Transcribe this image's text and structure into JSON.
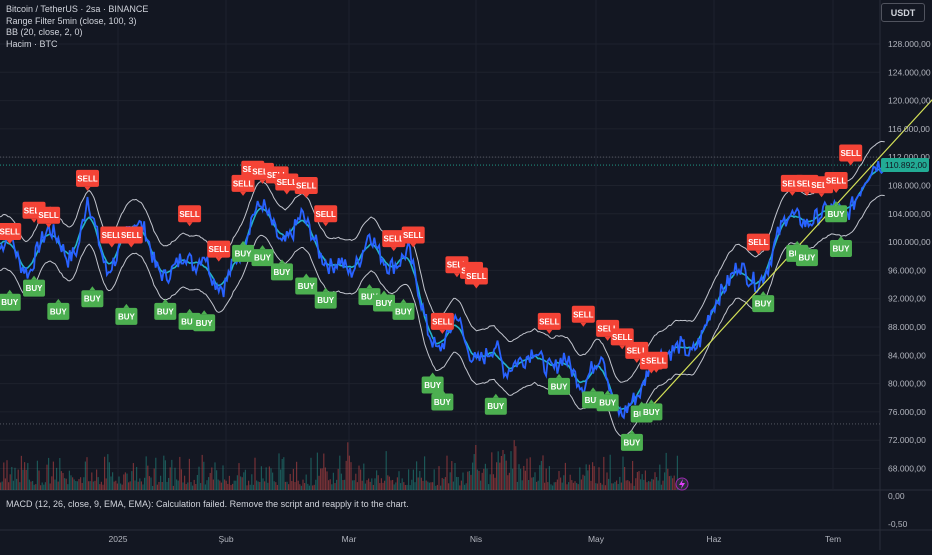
{
  "legend": {
    "title": "Bitcoin / TetherUS · 2sa · BINANCE",
    "range_filter": "Range Filter  5min (close, 100, 3)",
    "bb": "BB (20, close, 2, 0)",
    "volume": "Hacim · BTC"
  },
  "currency_button": "USDT",
  "macd_message": "MACD (12, 26, close, 9, EMA, EMA): Calculation failed. Remove the script and reapply it to the chart.",
  "colors": {
    "background": "#131722",
    "price_line": "#2962ff",
    "range_filter": "#26c6da",
    "bands": "#e0e3eb",
    "trend_line": "#d4e157",
    "buy": "#4caf50",
    "sell": "#f44336",
    "price_tag": "#22ab94",
    "volume_up": "#26a69a",
    "volume_down": "#ef5350"
  },
  "chart_data": {
    "type": "line",
    "title": "Bitcoin / TetherUS · 2sa · BINANCE",
    "current_price": "110.892,00",
    "y_ticks": [
      "128.000,00",
      "124.000,00",
      "120.000,00",
      "116.000,00",
      "112.000,00",
      "108.000,00",
      "104.000,00",
      "100.000,00",
      "96.000,00",
      "92.000,00",
      "88.000,00",
      "84.000,00",
      "80.000,00",
      "76.000,00",
      "72.000,00",
      "68.000,00"
    ],
    "macd_ticks": [
      "0,00",
      "-0,50"
    ],
    "x_ticks": [
      "2025",
      "Şub",
      "Mar",
      "Nis",
      "May",
      "Haz",
      "Tem"
    ],
    "ylim": [
      62000,
      131000
    ],
    "grid": true,
    "series": [
      {
        "type": "line",
        "x": [
          -4,
          -2,
          0,
          2,
          4,
          6,
          8,
          10,
          12,
          14,
          16,
          18,
          20,
          22,
          24,
          26,
          28,
          30,
          32,
          34,
          36,
          38,
          40,
          42,
          44,
          46,
          48,
          50,
          52,
          54,
          56,
          58,
          60,
          62,
          64,
          66,
          68,
          70,
          72,
          74,
          76,
          78,
          80,
          82,
          84,
          86,
          88,
          90,
          92,
          94,
          96,
          98,
          100,
          102,
          104,
          106,
          108,
          110,
          112,
          114,
          116,
          118,
          120,
          122,
          124,
          126,
          128,
          130,
          132,
          134,
          136,
          138,
          140
        ],
        "y": [
          99000,
          101500,
          97000,
          95500,
          99500,
          102000,
          100500,
          97500,
          99000,
          106500,
          101000,
          95500,
          98000,
          101500,
          103000,
          101500,
          96500,
          95000,
          96500,
          98500,
          96500,
          98500,
          94500,
          93500,
          97000,
          99000,
          104000,
          105500,
          102500,
          99500,
          101000,
          104000,
          101500,
          98000,
          96500,
          97500,
          95500,
          97500,
          101500,
          98500,
          96500,
          97000,
          99000,
          93500,
          87500,
          84500,
          86500,
          90000,
          85000,
          83000,
          84000,
          85500,
          81500,
          83000,
          83500,
          85000,
          82500,
          82000,
          84000,
          81500,
          79500,
          82500,
          84500,
          77000,
          75500,
          77500,
          79000,
          83500,
          84000,
          84500,
          85500,
          84000,
          86000
        ]
      },
      {
        "type": "line",
        "x": [
          140,
          142,
          144,
          146,
          148,
          150,
          152,
          154,
          156,
          158,
          160,
          162,
          164,
          166,
          168,
          170,
          172,
          174,
          176,
          178
        ],
        "y": [
          86000,
          90000,
          92500,
          94500,
          97000,
          95000,
          94000,
          96500,
          101000,
          104000,
          103500,
          102500,
          103500,
          104500,
          105000,
          103500,
          106000,
          109000,
          111000,
          110892
        ]
      },
      {
        "name": "trend line",
        "type": "line",
        "x": [
          129,
          198
        ],
        "y": [
          76000,
          127800
        ]
      }
    ],
    "buy_signals": [
      {
        "x": -2,
        "y": 91500
      },
      {
        "x": 3,
        "y": 93500
      },
      {
        "x": 8,
        "y": 90200
      },
      {
        "x": 15,
        "y": 92000
      },
      {
        "x": 22,
        "y": 89500
      },
      {
        "x": 30,
        "y": 90200
      },
      {
        "x": 35,
        "y": 88800
      },
      {
        "x": 38,
        "y": 88600
      },
      {
        "x": 46,
        "y": 98400
      },
      {
        "x": 50,
        "y": 97800
      },
      {
        "x": 54,
        "y": 95800
      },
      {
        "x": 59,
        "y": 93800
      },
      {
        "x": 63,
        "y": 91800
      },
      {
        "x": 72,
        "y": 92300
      },
      {
        "x": 75,
        "y": 91400
      },
      {
        "x": 79,
        "y": 90200
      },
      {
        "x": 85,
        "y": 79800
      },
      {
        "x": 87,
        "y": 77400
      },
      {
        "x": 98,
        "y": 76800
      },
      {
        "x": 111,
        "y": 79600
      },
      {
        "x": 118,
        "y": 77700
      },
      {
        "x": 121,
        "y": 77300
      },
      {
        "x": 126,
        "y": 71700
      },
      {
        "x": 128,
        "y": 75700
      },
      {
        "x": 130,
        "y": 76000
      },
      {
        "x": 153,
        "y": 91300
      },
      {
        "x": 160,
        "y": 98400
      },
      {
        "x": 162,
        "y": 97800
      },
      {
        "x": 168,
        "y": 104000
      },
      {
        "x": 169,
        "y": 99100
      }
    ],
    "sell_signals": [
      {
        "x": -2,
        "y": 101500
      },
      {
        "x": 3,
        "y": 104500
      },
      {
        "x": 6,
        "y": 103800
      },
      {
        "x": 14,
        "y": 109000
      },
      {
        "x": 19,
        "y": 101000
      },
      {
        "x": 23,
        "y": 101000
      },
      {
        "x": 35,
        "y": 104000
      },
      {
        "x": 41,
        "y": 99000
      },
      {
        "x": 46,
        "y": 108300
      },
      {
        "x": 48,
        "y": 110300
      },
      {
        "x": 50,
        "y": 110000
      },
      {
        "x": 53,
        "y": 109500
      },
      {
        "x": 55,
        "y": 108500
      },
      {
        "x": 59,
        "y": 108000
      },
      {
        "x": 63,
        "y": 104000
      },
      {
        "x": 77,
        "y": 100500
      },
      {
        "x": 81,
        "y": 101000
      },
      {
        "x": 90,
        "y": 96800
      },
      {
        "x": 93,
        "y": 96000
      },
      {
        "x": 94,
        "y": 95200
      },
      {
        "x": 87,
        "y": 88800
      },
      {
        "x": 109,
        "y": 88800
      },
      {
        "x": 116,
        "y": 89800
      },
      {
        "x": 121,
        "y": 87800
      },
      {
        "x": 124,
        "y": 86600
      },
      {
        "x": 127,
        "y": 84700
      },
      {
        "x": 130,
        "y": 83200
      },
      {
        "x": 131,
        "y": 83300
      },
      {
        "x": 152,
        "y": 100000
      },
      {
        "x": 159,
        "y": 108300
      },
      {
        "x": 162,
        "y": 108300
      },
      {
        "x": 165,
        "y": 108100
      },
      {
        "x": 168,
        "y": 108700
      },
      {
        "x": 171,
        "y": 112600
      }
    ],
    "x_axis": {
      "x": [
        -4,
        200
      ],
      "tick_values": [
        25,
        56,
        87,
        119,
        150,
        181,
        211
      ]
    }
  }
}
